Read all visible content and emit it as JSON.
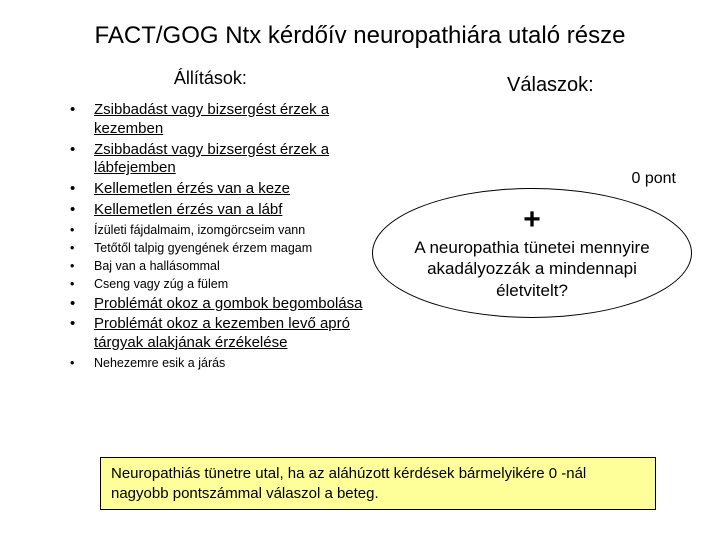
{
  "title": "FACT/GOG Ntx kérdőív neuropathiára utaló része",
  "headings": {
    "left": "Állítások:",
    "right": "Válaszok:"
  },
  "statements": [
    {
      "text": "Zsibbadást vagy bizsergést érzek a kezemben",
      "underline": true,
      "small": false
    },
    {
      "text": "Zsibbadást vagy bizsergést érzek a lábfejemben",
      "underline": true,
      "small": false
    },
    {
      "text": "Kellemetlen érzés van a keze",
      "underline": true,
      "small": false
    },
    {
      "text": "Kellemetlen érzés van a lábf",
      "underline": true,
      "small": false
    },
    {
      "text": "Ízületi fájdalmaim, izomgörcseim vann",
      "underline": false,
      "small": true
    },
    {
      "text": "Tetőtől talpig gyengének érzem magam",
      "underline": false,
      "small": true
    },
    {
      "text": "Baj van a hallásommal",
      "underline": false,
      "small": true
    },
    {
      "text": "Cseng vagy zúg a fülem",
      "underline": false,
      "small": true
    },
    {
      "text": "Problémát okoz a gombok begombolása",
      "underline": true,
      "small": false
    },
    {
      "text": "Problémát okoz a kezemben levő apró tárgyak alakjának érzékelése",
      "underline": true,
      "small": false
    },
    {
      "text": "Nehezemre esik a járás",
      "underline": false,
      "small": true
    }
  ],
  "score_partial": "0 pont",
  "bubble": {
    "plus": "+",
    "text": "A neuropathia tünetei mennyire akadályozzák a mindennapi életvitelt?"
  },
  "footer": "Neuropathiás tünetre utal, ha az aláhúzott kérdések bármelyikére 0 -nál nagyobb pontszámmal válaszol a beteg.",
  "colors": {
    "background": "#ffffff",
    "footer_bg": "#ffff99",
    "text": "#000000",
    "border": "#000000"
  }
}
